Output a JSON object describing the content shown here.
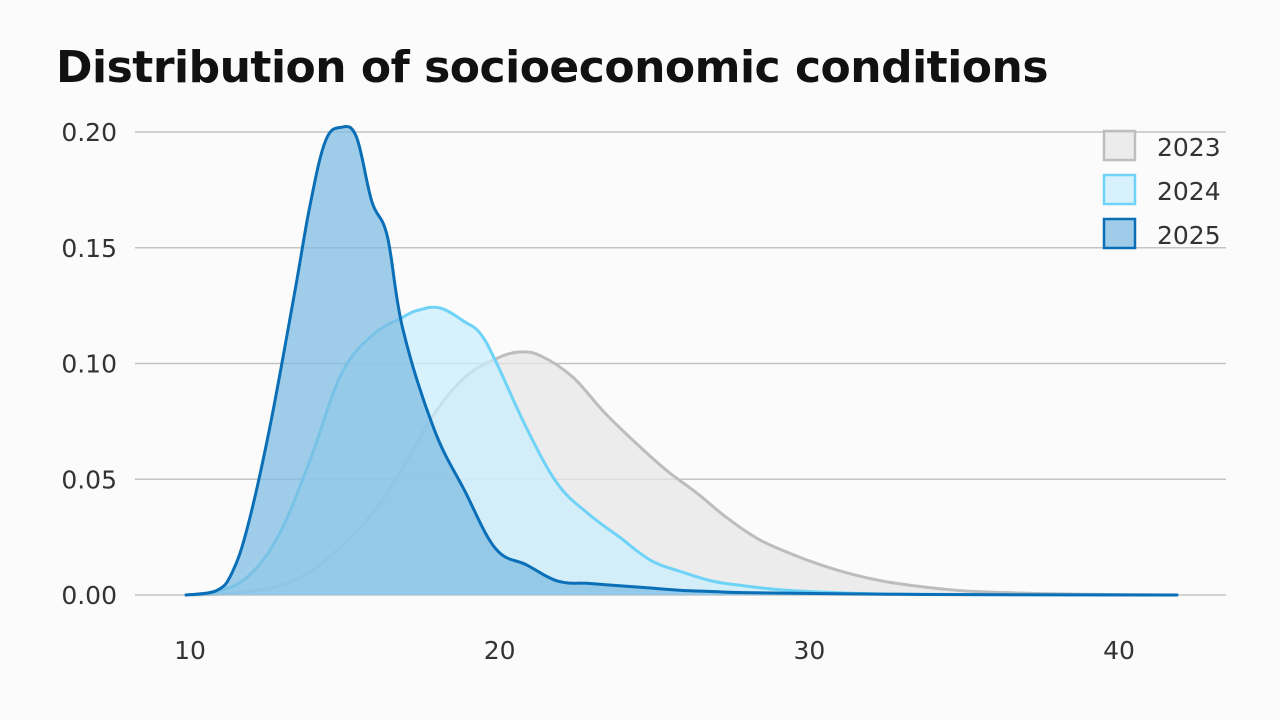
{
  "chart_data": {
    "type": "area",
    "title": "Distribution of socioeconomic conditions",
    "xlabel": "",
    "ylabel": "",
    "xlim": [
      10,
      42
    ],
    "ylim": [
      0,
      0.2
    ],
    "x_ticks": [
      10,
      20,
      30,
      40
    ],
    "x_tick_labels": [
      "10",
      "20",
      "30",
      "40"
    ],
    "y_ticks": [
      0,
      0.05,
      0.1,
      0.15,
      0.2
    ],
    "y_tick_labels": [
      "0.00",
      "0.05",
      "0.10",
      "0.15",
      "0.20"
    ],
    "grid": "horizontal",
    "legend_position": "top-right",
    "series": [
      {
        "name": "2023",
        "fill": "#e6e6e6",
        "stroke": "#bdbdbd",
        "x": [
          10,
          11,
          12,
          13,
          14,
          15,
          16,
          17,
          18,
          19,
          20,
          20.8,
          21.5,
          22.5,
          23.5,
          24.5,
          25.5,
          26.5,
          27.5,
          28.5,
          29.5,
          30.5,
          31.5,
          32.5,
          33.5,
          34.5,
          35.5,
          37,
          39,
          42
        ],
        "values": [
          0,
          0.0003,
          0.0015,
          0.004,
          0.01,
          0.021,
          0.035,
          0.055,
          0.078,
          0.094,
          0.102,
          0.105,
          0.103,
          0.094,
          0.079,
          0.066,
          0.054,
          0.044,
          0.033,
          0.024,
          0.018,
          0.013,
          0.009,
          0.006,
          0.004,
          0.0025,
          0.0015,
          0.0008,
          0.0003,
          0
        ]
      },
      {
        "name": "2024",
        "fill": "#c9eefc",
        "stroke": "#6fd3f7",
        "x": [
          10,
          11,
          12,
          13,
          14,
          15,
          16,
          17,
          17.5,
          18.2,
          19,
          19.5,
          20,
          21,
          22,
          23,
          24,
          25,
          26,
          27,
          28,
          29,
          30,
          31,
          32,
          33,
          35,
          37,
          42
        ],
        "values": [
          0,
          0.0015,
          0.008,
          0.026,
          0.058,
          0.095,
          0.112,
          0.12,
          0.123,
          0.124,
          0.118,
          0.113,
          0.101,
          0.072,
          0.048,
          0.035,
          0.025,
          0.015,
          0.01,
          0.006,
          0.004,
          0.0025,
          0.0016,
          0.001,
          0.0006,
          0.0004,
          0.0002,
          0.0001,
          0
        ]
      },
      {
        "name": "2025",
        "fill": "#7bbbe2",
        "stroke": "#0a6fb7",
        "x": [
          10,
          11,
          11.5,
          12,
          12.7,
          13.5,
          14,
          14.5,
          15,
          15.5,
          16,
          16.5,
          17,
          18,
          19,
          20,
          21,
          22,
          23,
          24,
          25,
          26,
          27,
          28,
          30,
          33,
          37,
          42
        ],
        "values": [
          0,
          0.002,
          0.01,
          0.03,
          0.072,
          0.13,
          0.168,
          0.196,
          0.202,
          0.198,
          0.17,
          0.155,
          0.115,
          0.072,
          0.045,
          0.02,
          0.013,
          0.006,
          0.005,
          0.004,
          0.003,
          0.002,
          0.0015,
          0.001,
          0.0007,
          0.0003,
          0.0001,
          0
        ]
      }
    ]
  }
}
